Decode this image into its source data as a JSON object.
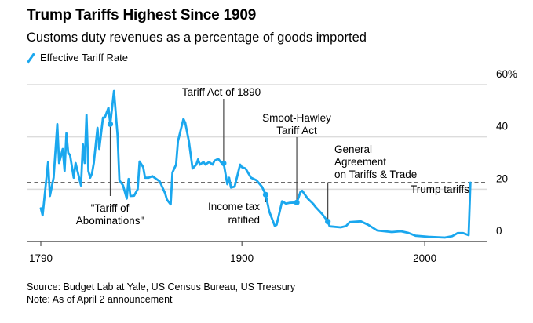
{
  "title": "Trump Tariffs Highest Since 1909",
  "subtitle": "Customs duty revenues as a percentage of goods imported",
  "legend": {
    "label": "Effective Tariff Rate",
    "color": "#1aa7ee"
  },
  "footer": {
    "source": "Source: Budget Lab at Yale, US Census Bureau, US Treasury",
    "note": "Note: As of April 2 announcement"
  },
  "chart_data": {
    "type": "line",
    "title": "Trump Tariffs Highest Since 1909",
    "xlabel": "",
    "ylabel": "",
    "xlim": [
      1785,
      2050
    ],
    "ylim": [
      0,
      60
    ],
    "x_ticks": [
      1790,
      1900,
      2000
    ],
    "y_ticks": [
      {
        "value": 0,
        "label": "0"
      },
      {
        "value": 20,
        "label": "20"
      },
      {
        "value": 40,
        "label": "40"
      },
      {
        "value": 60,
        "label": "60%"
      }
    ],
    "grid": true,
    "reference_line": {
      "value": 22.5,
      "style": "dashed",
      "label": "Trump tariffs"
    },
    "series": [
      {
        "name": "Effective Tariff Rate",
        "color": "#1aa7ee",
        "x": [
          1790,
          1791,
          1794,
          1795,
          1797,
          1799,
          1800,
          1802,
          1803,
          1804,
          1805,
          1806,
          1808,
          1809,
          1812,
          1813,
          1814,
          1815,
          1816,
          1817,
          1818,
          1819,
          1821,
          1822,
          1824,
          1825,
          1827,
          1828,
          1830,
          1832,
          1833,
          1835,
          1837,
          1838,
          1839,
          1841,
          1843,
          1844,
          1846,
          1847,
          1849,
          1851,
          1853,
          1855,
          1858,
          1859,
          1861,
          1862,
          1864,
          1865,
          1868,
          1869,
          1871,
          1873,
          1875,
          1876,
          1877,
          1879,
          1880,
          1882,
          1884,
          1885,
          1887,
          1889,
          1890,
          1892,
          1893,
          1894,
          1896,
          1899,
          1900,
          1902,
          1905,
          1908,
          1911,
          1913,
          1915,
          1918,
          1919,
          1922,
          1924,
          1926,
          1930,
          1932,
          1933,
          1936,
          1939,
          1940,
          1944,
          1947,
          1948,
          1954,
          1957,
          1959,
          1965,
          1969,
          1974,
          1978,
          1982,
          1987,
          1991,
          1995,
          2002,
          2011,
          2015,
          2018,
          2021,
          2024,
          2025
        ],
        "values": [
          12.7,
          10,
          30.4,
          17.4,
          24.4,
          44.9,
          30,
          35.4,
          27,
          41.4,
          33.9,
          33,
          24.4,
          30,
          21.4,
          37.2,
          30,
          48.4,
          27,
          24.4,
          26,
          30,
          43.5,
          35.4,
          47.4,
          47.4,
          51.2,
          44.9,
          57.6,
          40.4,
          23.4,
          21.4,
          16.4,
          23.9,
          17.4,
          17.5,
          20,
          30.6,
          28.4,
          24.4,
          24.4,
          25,
          24,
          23,
          18.4,
          16,
          14.2,
          26.4,
          29.4,
          38.4,
          46.9,
          45.4,
          38.4,
          27.9,
          29.4,
          31.4,
          29.4,
          30.4,
          29.4,
          30.4,
          29.4,
          30.9,
          31.6,
          29.9,
          29.9,
          21.9,
          24.4,
          20.6,
          21,
          29.4,
          28.4,
          27.9,
          24.4,
          23.4,
          20.9,
          17.9,
          11.4,
          5.9,
          6.4,
          15.4,
          14.5,
          14.8,
          14.9,
          18.9,
          19.4,
          16.4,
          14.4,
          13.4,
          10.4,
          7.6,
          5.8,
          5.4,
          5.9,
          7.4,
          7.7,
          6.4,
          4.2,
          3.9,
          3.6,
          3.9,
          3.3,
          2.2,
          1.8,
          1.5,
          2,
          3.2,
          3.2,
          2.4,
          22.5
        ]
      }
    ],
    "annotations": [
      {
        "year": 1828,
        "value": 44.9,
        "lines": [
          "\"Tariff of",
          "Abominations\""
        ]
      },
      {
        "year": 1890,
        "value": 29.9,
        "lines": [
          "Tariff Act of 1890"
        ]
      },
      {
        "year": 1913,
        "value": 17.9,
        "lines": [
          "Income tax",
          "ratified"
        ]
      },
      {
        "year": 1930,
        "value": 14.9,
        "lines": [
          "Smoot-Hawley",
          "Tariff Act"
        ]
      },
      {
        "year": 1947,
        "value": 7.6,
        "lines": [
          "General",
          "Agreement",
          "on Tariffs & Trade"
        ]
      }
    ]
  }
}
